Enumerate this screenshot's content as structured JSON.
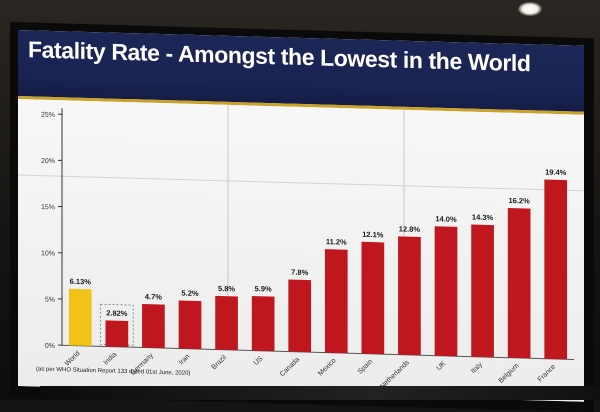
{
  "slide": {
    "title": "Fatality Rate - Amongst the Lowest in the World",
    "footnote": "(as per WHO Situation Report 133 dated 01st June, 2020)"
  },
  "colors": {
    "header_bg": "#1c2757",
    "header_rule": "#c9a227",
    "bar": "#c0161d",
    "highlight_bar": "#f2c316"
  },
  "chart_data": {
    "type": "bar",
    "title": "Fatality Rate - Amongst the Lowest in the World",
    "xlabel": "",
    "ylabel": "",
    "categories": [
      "World",
      "India",
      "Germany",
      "Iran",
      "Brazil",
      "US",
      "Canada",
      "Mexico",
      "Spain",
      "Netherlands",
      "UK",
      "Italy",
      "Belgium",
      "France"
    ],
    "values": [
      6.13,
      2.82,
      4.7,
      5.2,
      5.8,
      5.9,
      7.8,
      11.2,
      12.1,
      12.8,
      14.0,
      14.3,
      16.2,
      19.4
    ],
    "value_labels": [
      "6.13%",
      "2.82%",
      "4.7%",
      "5.2%",
      "5.8%",
      "5.9%",
      "7.8%",
      "11.2%",
      "12.1%",
      "12.8%",
      "14.0%",
      "14.3%",
      "16.2%",
      "19.4%"
    ],
    "highlight": {
      "World": "#f2c316"
    },
    "boxed": [
      "India"
    ],
    "ylim": [
      0,
      25
    ],
    "yticks": [
      0,
      5,
      10,
      15,
      20,
      25
    ],
    "ytick_labels": [
      "0%",
      "5%",
      "10%",
      "15%",
      "20%",
      "25%"
    ],
    "grid": false,
    "legend": "none"
  }
}
